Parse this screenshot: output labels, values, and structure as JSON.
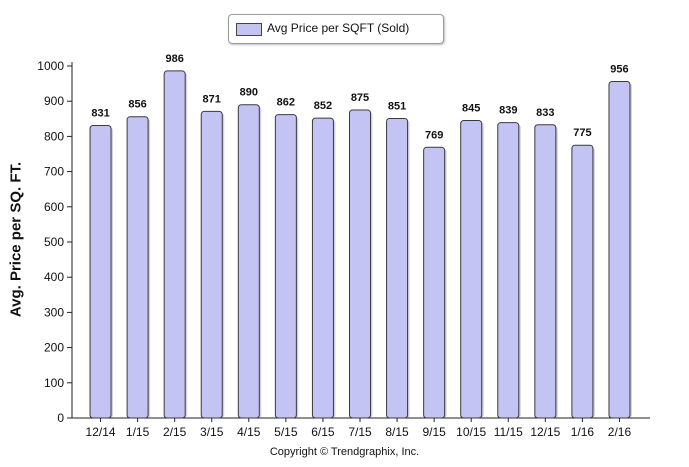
{
  "chart_data": {
    "type": "bar",
    "title": "",
    "xlabel": "",
    "ylabel": "Avg. Price per SQ. FT.",
    "ylim": [
      0,
      1000
    ],
    "yticks": [
      0,
      100,
      200,
      300,
      400,
      500,
      600,
      700,
      800,
      900,
      1000
    ],
    "categories": [
      "12/14",
      "1/15",
      "2/15",
      "3/15",
      "4/15",
      "5/15",
      "6/15",
      "7/15",
      "8/15",
      "9/15",
      "10/15",
      "11/15",
      "12/15",
      "1/16",
      "2/16"
    ],
    "series": [
      {
        "name": "Avg Price per SQFT (Sold)",
        "color": "#c4c4f4",
        "values": [
          831,
          856,
          986,
          871,
          890,
          862,
          852,
          875,
          851,
          769,
          845,
          839,
          833,
          775,
          956
        ]
      }
    ],
    "data_labels": true,
    "legend_position": "top-center",
    "grid": false
  },
  "footer": {
    "copyright": "Copyright © Trendgraphix, Inc."
  }
}
